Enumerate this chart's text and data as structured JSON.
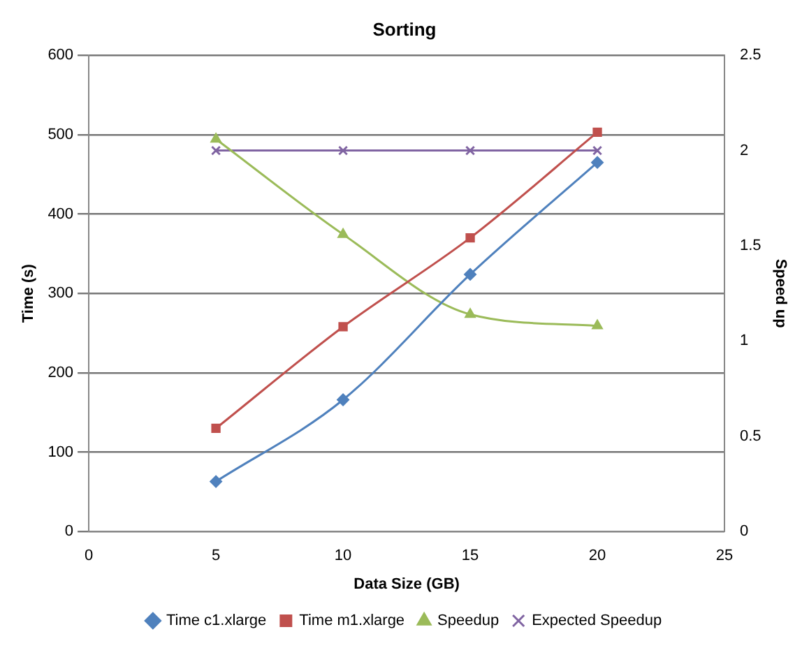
{
  "chart_data": {
    "type": "line",
    "title": "Sorting",
    "xlabel": "Data Size (GB)",
    "ylabel": "Time (s)",
    "y2label": "Speed up",
    "x": [
      5,
      10,
      15,
      20
    ],
    "series": [
      {
        "name": "Time c1.xlarge",
        "color": "#4f81bd",
        "values": [
          63,
          166,
          324,
          465
        ],
        "marker": "diamond"
      },
      {
        "name": "Time m1.xlarge",
        "color": "#c0504d",
        "values": [
          130,
          258,
          370,
          503
        ],
        "marker": "square"
      },
      {
        "name": "Speedup",
        "color": "#9bbb59",
        "values": [
          2.06,
          1.56,
          1.14,
          1.08
        ],
        "marker": "triangle",
        "axis": "y2"
      },
      {
        "name": "Expected Speedup",
        "color": "#8064a2",
        "values": [
          2,
          2,
          2,
          2
        ],
        "marker": "cross",
        "axis": "y2"
      }
    ],
    "xlim": [
      0,
      25
    ],
    "xticks": [
      0,
      5,
      10,
      15,
      20,
      25
    ],
    "ylim": [
      0,
      600
    ],
    "yticks": [
      0,
      100,
      200,
      300,
      400,
      500,
      600
    ],
    "y2lim": [
      0,
      2.5
    ],
    "y2ticks": [
      0,
      0.5,
      1,
      1.5,
      2,
      2.5
    ],
    "grid": "y",
    "legend": "bottom"
  }
}
